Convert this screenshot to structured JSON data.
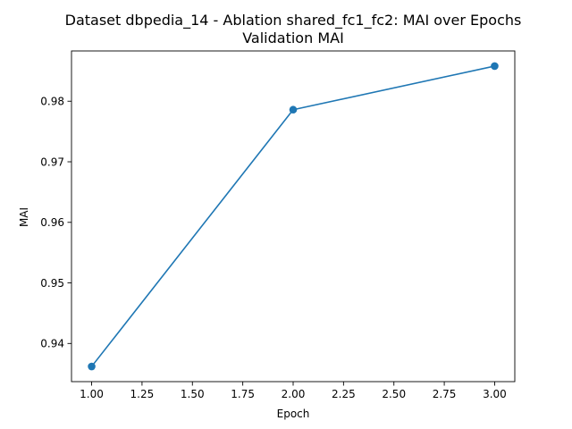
{
  "chart_data": {
    "type": "line",
    "title": "Dataset dbpedia_14 - Ablation shared_fc1_fc2: MAI over Epochs",
    "subtitle": "Validation MAI",
    "xlabel": "Epoch",
    "ylabel": "MAI",
    "x": [
      1,
      2,
      3
    ],
    "series": [
      {
        "values": [
          0.9362,
          0.9786,
          0.9858
        ],
        "color": "#1f77b4",
        "marker": "circle"
      }
    ],
    "xlim": [
      0.9,
      3.1
    ],
    "ylim": [
      0.9337,
      0.9883
    ],
    "xticks": [
      1.0,
      1.25,
      1.5,
      1.75,
      2.0,
      2.25,
      2.5,
      2.75,
      3.0
    ],
    "xtick_labels": [
      "1.00",
      "1.25",
      "1.50",
      "1.75",
      "2.00",
      "2.25",
      "2.50",
      "2.75",
      "3.00"
    ],
    "yticks": [
      0.94,
      0.95,
      0.96,
      0.97,
      0.98
    ],
    "ytick_labels": [
      "0.94",
      "0.95",
      "0.96",
      "0.97",
      "0.98"
    ],
    "grid": false,
    "legend": "none"
  }
}
